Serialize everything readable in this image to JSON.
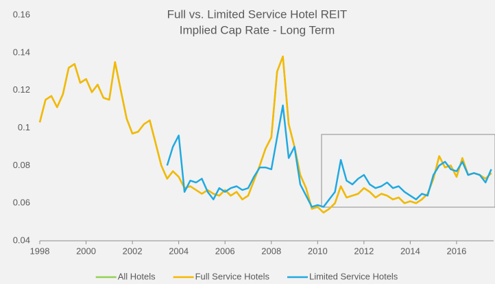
{
  "chart_data": {
    "type": "line",
    "title": "Full vs. Limited Service Hotel REIT",
    "subtitle": "Implied Cap Rate - Long Term",
    "x": [
      1998,
      1998.25,
      1998.5,
      1998.75,
      1999,
      1999.25,
      1999.5,
      1999.75,
      2000,
      2000.25,
      2000.5,
      2000.75,
      2001,
      2001.25,
      2001.5,
      2001.75,
      2002,
      2002.25,
      2002.5,
      2002.75,
      2003,
      2003.25,
      2003.5,
      2003.75,
      2004,
      2004.25,
      2004.5,
      2004.75,
      2005,
      2005.25,
      2005.5,
      2005.75,
      2006,
      2006.25,
      2006.5,
      2006.75,
      2007,
      2007.25,
      2007.5,
      2007.75,
      2008,
      2008.25,
      2008.5,
      2008.75,
      2009,
      2009.25,
      2009.5,
      2009.75,
      2010,
      2010.25,
      2010.5,
      2010.75,
      2011,
      2011.25,
      2011.5,
      2011.75,
      2012,
      2012.25,
      2012.5,
      2012.75,
      2013,
      2013.25,
      2013.5,
      2013.75,
      2014,
      2014.25,
      2014.5,
      2014.75,
      2015,
      2015.25,
      2015.5,
      2015.75,
      2016,
      2016.25,
      2016.5,
      2016.75,
      2017,
      2017.25,
      2017.5
    ],
    "series": [
      {
        "name": "All Hotels",
        "color": "#92d050",
        "values": [
          0.103,
          0.115,
          0.117,
          0.111,
          0.118,
          0.132,
          0.134,
          0.124,
          0.126,
          0.119,
          0.123,
          0.116,
          0.115,
          0.135,
          0.12,
          0.105,
          0.097,
          0.098,
          0.102,
          0.104,
          0.092,
          0.08,
          0.073,
          0.077,
          0.074,
          0.068,
          0.069,
          0.067,
          0.065,
          0.067,
          0.065,
          0.064,
          0.067,
          0.064,
          0.066,
          0.062,
          0.064,
          0.072,
          0.08,
          0.089,
          0.095,
          0.13,
          0.138,
          0.102,
          0.09,
          0.075,
          0.068,
          0.057,
          0.058,
          0.055,
          0.057,
          0.06,
          0.069,
          0.063,
          0.064,
          0.065,
          0.068,
          0.066,
          0.063,
          0.065,
          0.064,
          0.062,
          0.063,
          0.06,
          0.061,
          0.06,
          0.062,
          0.065,
          0.073,
          0.085,
          0.079,
          0.08,
          0.074,
          0.084,
          0.075,
          0.076,
          0.075,
          0.073,
          0.076
        ]
      },
      {
        "name": "Full Service Hotels",
        "color": "#f5b800",
        "values": [
          0.103,
          0.115,
          0.117,
          0.111,
          0.118,
          0.132,
          0.134,
          0.124,
          0.126,
          0.119,
          0.123,
          0.116,
          0.115,
          0.135,
          0.12,
          0.105,
          0.097,
          0.098,
          0.102,
          0.104,
          0.092,
          0.08,
          0.073,
          0.077,
          0.074,
          0.068,
          0.069,
          0.067,
          0.065,
          0.067,
          0.065,
          0.064,
          0.067,
          0.064,
          0.066,
          0.062,
          0.064,
          0.072,
          0.08,
          0.089,
          0.095,
          0.13,
          0.138,
          0.102,
          0.09,
          0.075,
          0.068,
          0.057,
          0.058,
          0.055,
          0.057,
          0.06,
          0.069,
          0.063,
          0.064,
          0.065,
          0.068,
          0.066,
          0.063,
          0.065,
          0.064,
          0.062,
          0.063,
          0.06,
          0.061,
          0.06,
          0.062,
          0.065,
          0.073,
          0.085,
          0.079,
          0.08,
          0.074,
          0.084,
          0.075,
          0.076,
          0.075,
          0.073,
          0.076
        ]
      },
      {
        "name": "Limited Service Hotels",
        "color": "#1fa9e1",
        "values": [
          null,
          null,
          null,
          null,
          null,
          null,
          null,
          null,
          null,
          null,
          null,
          null,
          null,
          null,
          null,
          null,
          null,
          null,
          null,
          null,
          null,
          null,
          0.08,
          0.09,
          0.096,
          0.066,
          0.072,
          0.071,
          0.073,
          0.066,
          0.062,
          0.068,
          0.066,
          0.068,
          0.069,
          0.067,
          0.068,
          0.074,
          0.079,
          0.079,
          0.078,
          0.095,
          0.112,
          0.084,
          0.09,
          0.07,
          0.064,
          0.058,
          0.059,
          0.058,
          0.062,
          0.066,
          0.083,
          0.072,
          0.07,
          0.073,
          0.075,
          0.07,
          0.068,
          0.069,
          0.071,
          0.068,
          0.069,
          0.066,
          0.064,
          0.062,
          0.065,
          0.064,
          0.075,
          0.08,
          0.082,
          0.078,
          0.077,
          0.082,
          0.075,
          0.076,
          0.075,
          0.071,
          0.078
        ]
      }
    ],
    "xlim": [
      1998,
      2017.6
    ],
    "xticks": [
      1998,
      2000,
      2002,
      2004,
      2006,
      2008,
      2010,
      2012,
      2014,
      2016
    ],
    "ylim": [
      0.04,
      0.16
    ],
    "yticks": [
      0.04,
      0.06,
      0.08,
      0.1,
      0.12,
      0.14,
      0.16
    ],
    "grid": false,
    "legend": "bottom"
  }
}
